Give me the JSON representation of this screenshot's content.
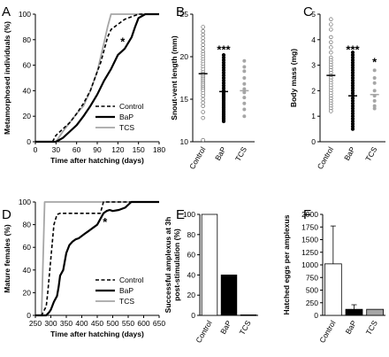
{
  "colors": {
    "control": "#000000",
    "bap": "#000000",
    "tcs": "#a6a6a6",
    "axis": "#000000"
  },
  "chart_data": [
    {
      "panel": "A",
      "type": "line",
      "xlabel": "Time after hatching (days)",
      "ylabel": "Metamorphosed individuals (%)",
      "xlim": [
        0,
        180
      ],
      "ylim": [
        0,
        100
      ],
      "xticks": [
        0,
        30,
        60,
        90,
        120,
        150,
        180
      ],
      "yticks": [
        0,
        20,
        40,
        60,
        80,
        100
      ],
      "legend_position": "bottom-right",
      "annotations": [
        {
          "text": "*",
          "x": 127,
          "y": 78
        }
      ],
      "series": [
        {
          "name": "Control",
          "style": "dashed",
          "x": [
            0,
            25,
            30,
            40,
            50,
            60,
            70,
            80,
            90,
            95,
            100,
            105,
            110,
            120,
            130,
            140,
            150,
            160,
            180
          ],
          "y": [
            0,
            0,
            5,
            10,
            15,
            22,
            30,
            40,
            55,
            62,
            72,
            82,
            88,
            92,
            96,
            98,
            100,
            100,
            100
          ]
        },
        {
          "name": "BaP",
          "style": "solid",
          "x": [
            0,
            30,
            40,
            50,
            60,
            70,
            80,
            90,
            100,
            110,
            120,
            130,
            140,
            145,
            150,
            160,
            180
          ],
          "y": [
            0,
            0,
            3,
            8,
            13,
            20,
            28,
            37,
            48,
            57,
            68,
            73,
            82,
            90,
            97,
            100,
            100
          ]
        },
        {
          "name": "TCS",
          "style": "solid",
          "x": [
            0,
            30,
            40,
            50,
            60,
            70,
            80,
            90,
            100,
            105,
            110,
            180
          ],
          "y": [
            0,
            0,
            8,
            15,
            22,
            28,
            40,
            55,
            78,
            90,
            100,
            100
          ]
        }
      ]
    },
    {
      "panel": "B",
      "type": "scatter",
      "ylabel": "Snout-vent length (mm)",
      "categories": [
        "Control",
        "BaP",
        "TCS"
      ],
      "ylim": [
        10,
        25
      ],
      "yticks": [
        10,
        15,
        20,
        25
      ],
      "means": [
        18.0,
        15.9,
        16.0
      ],
      "annotations": [
        {
          "text": "***",
          "category": "BaP",
          "y": 20.8
        }
      ],
      "points": [
        [
          23.5,
          23.0,
          22.6,
          22.2,
          21.8,
          21.4,
          21.0,
          20.6,
          20.3,
          20.0,
          19.7,
          19.4,
          19.1,
          18.8,
          18.5,
          18.2,
          18.0,
          17.8,
          17.6,
          17.4,
          17.2,
          17.0,
          16.8,
          16.6,
          16.4,
          16.2,
          16.0,
          15.7,
          15.4,
          15.0,
          14.6,
          14.2,
          13.5,
          12.8,
          10.2
        ],
        [
          20.2,
          19.9,
          19.6,
          19.3,
          19.0,
          18.7,
          18.4,
          18.1,
          17.8,
          17.5,
          17.2,
          16.9,
          16.6,
          16.3,
          16.0,
          15.8,
          15.6,
          15.4,
          15.2,
          15.0,
          14.8,
          14.6,
          14.4,
          14.2,
          14.0,
          13.8,
          13.6,
          13.4,
          13.2,
          13.0,
          12.8,
          12.6,
          12.4
        ],
        [
          19.5,
          18.8,
          18.3,
          17.5,
          16.8,
          16.2,
          15.8,
          15.2,
          14.5,
          13.8,
          13.0
        ]
      ]
    },
    {
      "panel": "C",
      "type": "scatter",
      "ylabel": "Body mass (mg)",
      "categories": [
        "Control",
        "BaP",
        "TCS"
      ],
      "ylim": [
        0,
        5
      ],
      "yticks": [
        0,
        1,
        2,
        3,
        4,
        5
      ],
      "means": [
        2.6,
        1.8,
        1.85
      ],
      "annotations": [
        {
          "text": "***",
          "category": "BaP",
          "y": 3.6
        },
        {
          "text": "*",
          "category": "TCS",
          "y": 3.1
        }
      ],
      "points": [
        [
          4.8,
          4.6,
          4.4,
          4.1,
          3.9,
          3.7,
          3.5,
          3.3,
          3.2,
          3.1,
          3.0,
          2.9,
          2.8,
          2.7,
          2.6,
          2.5,
          2.4,
          2.3,
          2.2,
          2.1,
          2.0,
          1.9,
          1.8,
          1.7,
          1.6,
          1.5,
          1.4,
          1.3,
          1.2
        ],
        [
          3.5,
          3.4,
          3.3,
          3.2,
          3.1,
          3.0,
          2.9,
          2.8,
          2.7,
          2.6,
          2.5,
          2.4,
          2.3,
          2.2,
          2.1,
          2.0,
          1.9,
          1.8,
          1.7,
          1.6,
          1.5,
          1.4,
          1.3,
          1.2,
          1.1,
          1.0,
          0.9,
          0.8,
          0.7,
          0.6,
          0.5
        ],
        [
          2.8,
          2.5,
          2.3,
          2.0,
          1.8,
          1.6,
          1.4,
          1.3
        ]
      ]
    },
    {
      "panel": "D",
      "type": "line",
      "xlabel": "Time after hatching (days)",
      "ylabel": "Mature females (%)",
      "xlim": [
        250,
        650
      ],
      "ylim": [
        0,
        100
      ],
      "xticks": [
        250,
        300,
        350,
        400,
        450,
        500,
        550,
        600,
        650
      ],
      "yticks": [
        0,
        20,
        40,
        60,
        80,
        100
      ],
      "legend_position": "bottom-right",
      "annotations": [
        {
          "text": "*",
          "x": 475,
          "y": 82
        }
      ],
      "series": [
        {
          "name": "Control",
          "style": "dashed",
          "x": [
            250,
            270,
            285,
            290,
            300,
            310,
            320,
            330,
            460,
            470,
            480,
            650
          ],
          "y": [
            0,
            0,
            8,
            20,
            50,
            80,
            89,
            90,
            90,
            100,
            100,
            100
          ]
        },
        {
          "name": "BaP",
          "style": "solid",
          "x": [
            250,
            285,
            295,
            300,
            310,
            320,
            325,
            330,
            340,
            350,
            360,
            370,
            380,
            390,
            400,
            410,
            420,
            430,
            440,
            450,
            460,
            470,
            480,
            490,
            500,
            520,
            540,
            560,
            650
          ],
          "y": [
            0,
            0,
            3,
            5,
            12,
            17,
            25,
            35,
            40,
            55,
            62,
            65,
            67,
            68,
            70,
            72,
            74,
            76,
            78,
            80,
            85,
            90,
            92,
            93,
            92,
            93,
            95,
            100,
            100
          ]
        },
        {
          "name": "TCS",
          "style": "solid",
          "x": [
            250,
            270,
            280,
            300,
            650
          ],
          "y": [
            0,
            0,
            100,
            100,
            100
          ]
        }
      ]
    },
    {
      "panel": "E",
      "type": "bar",
      "ylabel_line1": "Successful amplexus at 3h",
      "ylabel_line2": "post-stimulation (%)",
      "categories": [
        "Control",
        "BaP",
        "TCS"
      ],
      "values": [
        100,
        40,
        0.5
      ],
      "fills": [
        "#ffffff",
        "#000000",
        "#a6a6a6"
      ],
      "ylim": [
        0,
        100
      ],
      "yticks": [
        0,
        20,
        40,
        60,
        80,
        100
      ]
    },
    {
      "panel": "F",
      "type": "bar",
      "ylabel": "Hatched eggs per amplexus",
      "categories": [
        "Control",
        "BaP",
        "TCS"
      ],
      "values": [
        1020,
        120,
        120
      ],
      "errors": [
        750,
        90,
        0
      ],
      "fills": [
        "#ffffff",
        "#000000",
        "#a6a6a6"
      ],
      "ylim": [
        0,
        2000
      ],
      "yticks": [
        0,
        250,
        500,
        750,
        1000,
        1250,
        1500,
        1750,
        2000
      ]
    }
  ]
}
